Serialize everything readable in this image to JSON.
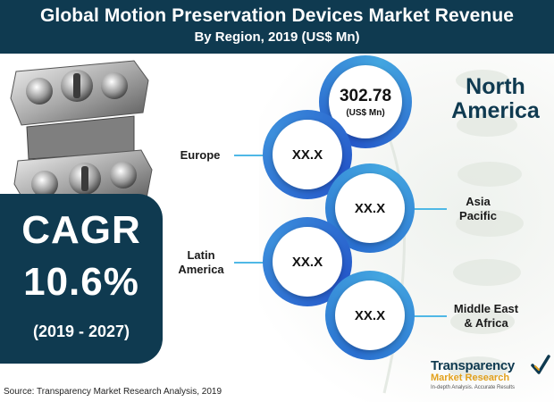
{
  "header": {
    "title": "Global Motion Preservation Devices Market Revenue",
    "subtitle": "By Region, 2019 (US$ Mn)"
  },
  "cagr": {
    "label": "CAGR",
    "value": "10.6%",
    "period": "(2019 - 2027)"
  },
  "regions": {
    "north_america": {
      "label_line1": "North",
      "label_line2": "America",
      "value": "302.78",
      "unit": "(US$ Mn)"
    },
    "europe": {
      "label": "Europe",
      "value": "XX.X"
    },
    "asia_pacific": {
      "label_line1": "Asia",
      "label_line2": "Pacific",
      "value": "XX.X"
    },
    "latin_america": {
      "label_line1": "Latin",
      "label_line2": "America",
      "value": "XX.X"
    },
    "middle_east_africa": {
      "label_line1": "Middle East",
      "label_line2": "& Africa",
      "value": "XX.X"
    }
  },
  "source": "Source: Transparency Market Research Analysis, 2019",
  "logo": {
    "word1": "Transparency",
    "word2": "Market Research",
    "tagline": "In-depth Analysis. Accurate Results"
  },
  "colors": {
    "navy": "#0f3a50",
    "ring_blue": "#2456c9",
    "ring_light": "#43a6e0",
    "accent_orange": "#e2a11e"
  }
}
